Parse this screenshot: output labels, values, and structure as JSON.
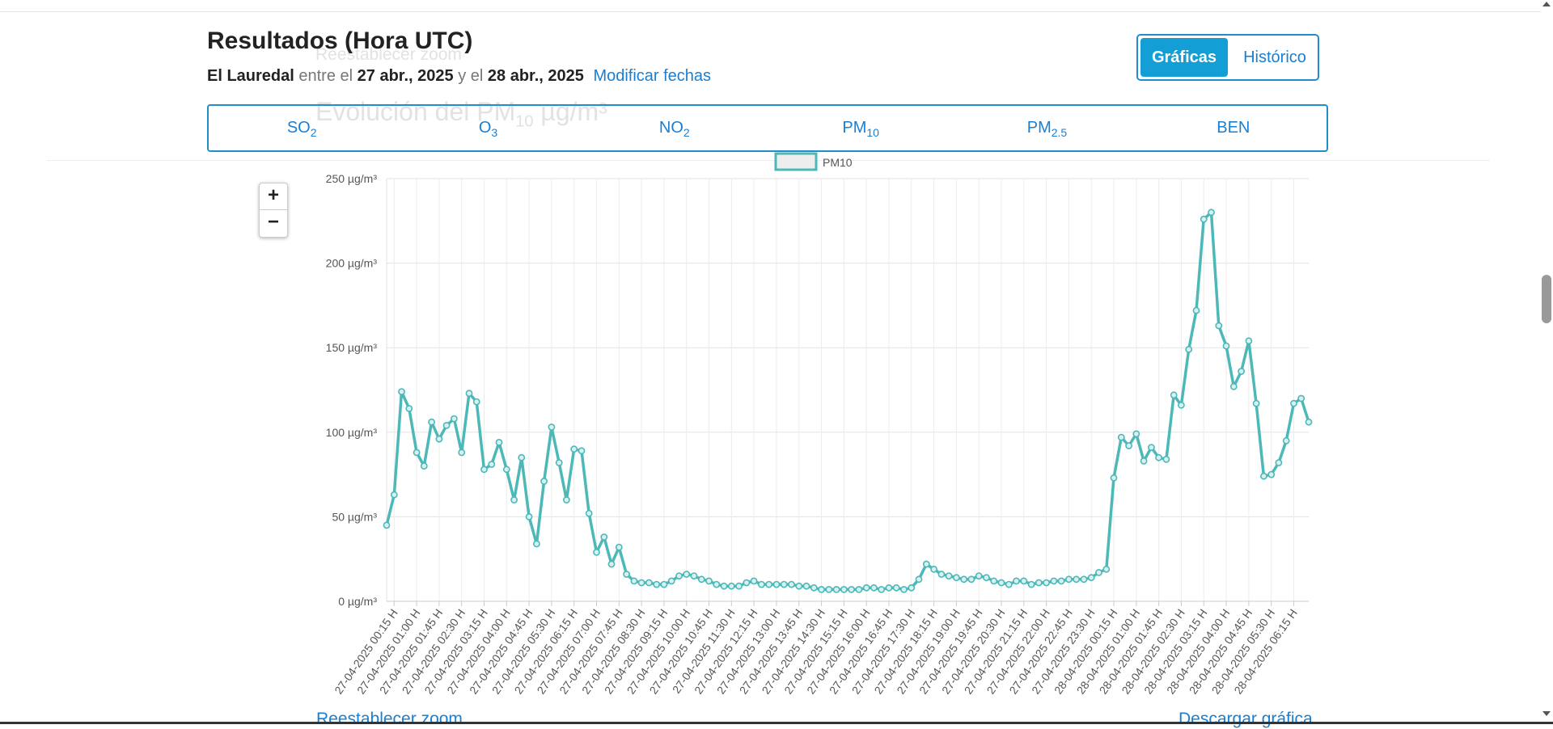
{
  "header": {
    "title": "Resultados (Hora UTC)",
    "station": "El Lauredal",
    "between": "entre el",
    "date_from": "27 abr., 2025",
    "and": "y el",
    "date_to": "28 abr., 2025",
    "modify_label": "Modificar fechas"
  },
  "view_toggle": {
    "charts_label": "Gráficas",
    "history_label": "Histórico"
  },
  "tabs": [
    {
      "base": "SO",
      "sub": "2"
    },
    {
      "base": "O",
      "sub": "3"
    },
    {
      "base": "NO",
      "sub": "2"
    },
    {
      "base": "PM",
      "sub": "10"
    },
    {
      "base": "PM",
      "sub": "2.5"
    },
    {
      "base": "BEN",
      "sub": ""
    }
  ],
  "ghost": {
    "reset_zoom": "Reestablecer zoom",
    "chart_title": "Evolución del PM",
    "title_sub": "10",
    "title_unit": " µg/m³",
    "history": "Histórico"
  },
  "zoom": {
    "in": "+",
    "out": "−"
  },
  "footer": {
    "reset_zoom": "Reestablecer zoom",
    "download": "Descargar gráfica"
  },
  "colors": {
    "accent": "#1f8ec9",
    "series": "#4cb8b8"
  },
  "chart_data": {
    "type": "line",
    "title": "",
    "xlabel": "",
    "ylabel": "",
    "legend": {
      "entries": [
        "PM10"
      ],
      "position": "top"
    },
    "grid": true,
    "y_unit": "µg/m³",
    "ylim": [
      0,
      250
    ],
    "y_ticks": [
      "0 µg/m³",
      "50 µg/m³",
      "100 µg/m³",
      "150 µg/m³",
      "200 µg/m³",
      "250 µg/m³"
    ],
    "x_tick_labels": [
      "27-04-2025 00:15 H",
      "27-04-2025 01:00 H",
      "27-04-2025 01:45 H",
      "27-04-2025 02:30 H",
      "27-04-2025 03:15 H",
      "27-04-2025 04:00 H",
      "27-04-2025 04:45 H",
      "27-04-2025 05:30 H",
      "27-04-2025 06:15 H",
      "27-04-2025 07:00 H",
      "27-04-2025 07:45 H",
      "27-04-2025 08:30 H",
      "27-04-2025 09:15 H",
      "27-04-2025 10:00 H",
      "27-04-2025 10:45 H",
      "27-04-2025 11:30 H",
      "27-04-2025 12:15 H",
      "27-04-2025 13:00 H",
      "27-04-2025 13:45 H",
      "27-04-2025 14:30 H",
      "27-04-2025 15:15 H",
      "27-04-2025 16:00 H",
      "27-04-2025 16:45 H",
      "27-04-2025 17:30 H",
      "27-04-2025 18:15 H",
      "27-04-2025 19:00 H",
      "27-04-2025 19:45 H",
      "27-04-2025 20:30 H",
      "27-04-2025 21:15 H",
      "27-04-2025 22:00 H",
      "27-04-2025 22:45 H",
      "27-04-2025 23:30 H",
      "28-04-2025 00:15 H",
      "28-04-2025 01:00 H",
      "28-04-2025 01:45 H",
      "28-04-2025 02:30 H",
      "28-04-2025 03:15 H",
      "28-04-2025 04:00 H",
      "28-04-2025 04:45 H",
      "28-04-2025 05:30 H",
      "28-04-2025 06:15 H"
    ],
    "series": [
      {
        "name": "PM10",
        "color": "#4cb8b8",
        "values": [
          45,
          63,
          124,
          114,
          88,
          80,
          106,
          96,
          104,
          108,
          88,
          123,
          118,
          78,
          81,
          94,
          78,
          60,
          85,
          50,
          34,
          71,
          103,
          82,
          60,
          90,
          89,
          52,
          29,
          38,
          22,
          32,
          16,
          12,
          11,
          11,
          10,
          10,
          12,
          15,
          16,
          15,
          13,
          12,
          10,
          9,
          9,
          9,
          11,
          12,
          10,
          10,
          10,
          10,
          10,
          9,
          9,
          8,
          7,
          7,
          7,
          7,
          7,
          7,
          8,
          8,
          7,
          8,
          8,
          7,
          8,
          13,
          22,
          19,
          16,
          15,
          14,
          13,
          13,
          15,
          14,
          12,
          11,
          10,
          12,
          12,
          10,
          11,
          11,
          12,
          12,
          13,
          13,
          13,
          14,
          17,
          19,
          73,
          97,
          92,
          99,
          83,
          91,
          85,
          84,
          122,
          116,
          149,
          172,
          226,
          230,
          163,
          151,
          127,
          136,
          154,
          117,
          74,
          75,
          82,
          95,
          117,
          120,
          106
        ]
      }
    ]
  }
}
